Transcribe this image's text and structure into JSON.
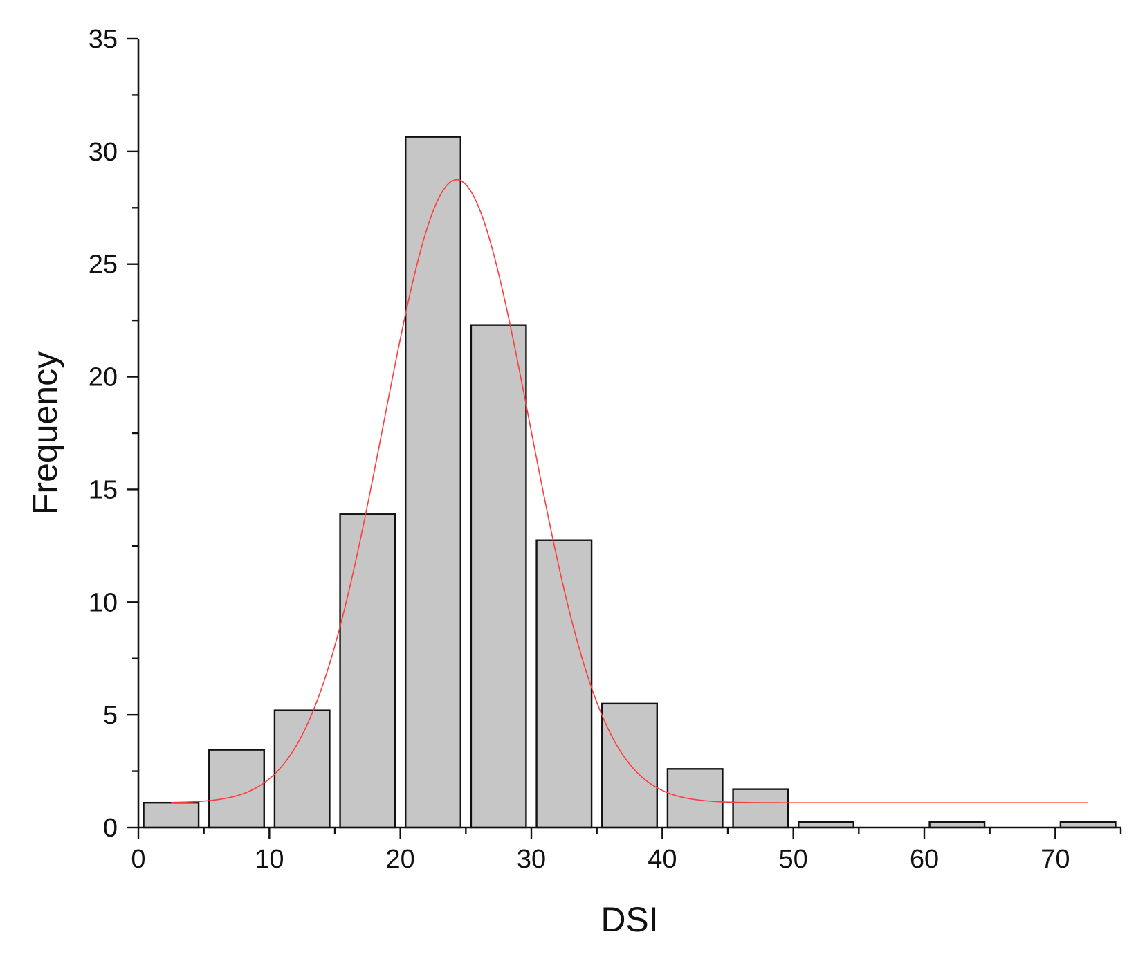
{
  "chart_data": {
    "type": "bar",
    "xlabel": "DSI",
    "ylabel": "Frequency",
    "xlim": [
      0,
      75
    ],
    "ylim": [
      0,
      35
    ],
    "x_ticks": [
      0,
      10,
      20,
      30,
      40,
      50,
      60,
      70
    ],
    "y_ticks": [
      0,
      5,
      10,
      15,
      20,
      25,
      30,
      35
    ],
    "bin_width": 5,
    "bins": [
      {
        "start": 0,
        "end": 5,
        "value": 1.1
      },
      {
        "start": 5,
        "end": 10,
        "value": 3.45
      },
      {
        "start": 10,
        "end": 15,
        "value": 5.2
      },
      {
        "start": 15,
        "end": 20,
        "value": 13.9
      },
      {
        "start": 20,
        "end": 25,
        "value": 30.65
      },
      {
        "start": 25,
        "end": 30,
        "value": 22.3
      },
      {
        "start": 30,
        "end": 35,
        "value": 12.75
      },
      {
        "start": 35,
        "end": 40,
        "value": 5.5
      },
      {
        "start": 40,
        "end": 45,
        "value": 2.6
      },
      {
        "start": 45,
        "end": 50,
        "value": 1.7
      },
      {
        "start": 50,
        "end": 55,
        "value": 0.25
      },
      {
        "start": 55,
        "end": 60,
        "value": 0
      },
      {
        "start": 60,
        "end": 65,
        "value": 0.25
      },
      {
        "start": 65,
        "end": 70,
        "value": 0
      },
      {
        "start": 70,
        "end": 75,
        "value": 0.25
      }
    ],
    "fit_curve": {
      "kind": "gaussian",
      "baseline": 1.1,
      "peak": 28.75,
      "center": 24.3,
      "sigma": 5.6,
      "x_range": [
        2.5,
        72.5
      ],
      "color": "#ff3b3b"
    },
    "bar_color": "#c6c6c6",
    "grid": false,
    "legend": "none"
  }
}
